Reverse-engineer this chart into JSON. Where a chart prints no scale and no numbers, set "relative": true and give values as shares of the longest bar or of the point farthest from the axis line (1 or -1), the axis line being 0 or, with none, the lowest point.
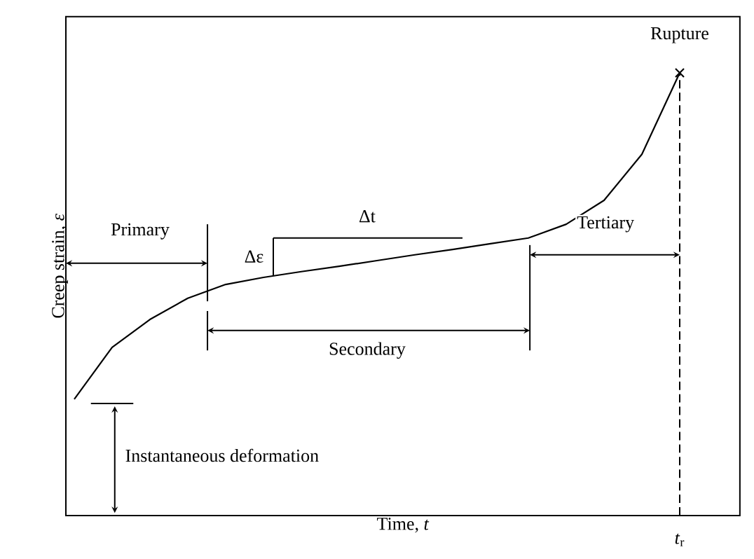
{
  "chart_data": {
    "type": "line",
    "relative": true,
    "tick_labels": false,
    "xlabel": "Time, *t*",
    "ylabel": "Creep strain, *ε*",
    "categories": [
      null,
      null,
      null,
      null,
      null,
      null,
      null,
      null,
      null,
      null,
      null,
      null,
      null,
      null,
      null,
      null,
      null
    ],
    "series": [
      {
        "color": "#000000",
        "values": [
          0.263,
          0.38,
          0.443,
          0.491,
          0.522,
          0.538,
          0.551,
          0.563,
          0.576,
          0.589,
          0.601,
          0.614,
          0.627,
          0.658,
          0.712,
          0.816,
          1
        ]
      }
    ],
    "annotations": [
      "Primary",
      "Δε",
      "Δt",
      "Secondary",
      "Tertiary",
      "Instantaneous deformation",
      "Rupture",
      "*t*$_{r}$"
    ]
  }
}
